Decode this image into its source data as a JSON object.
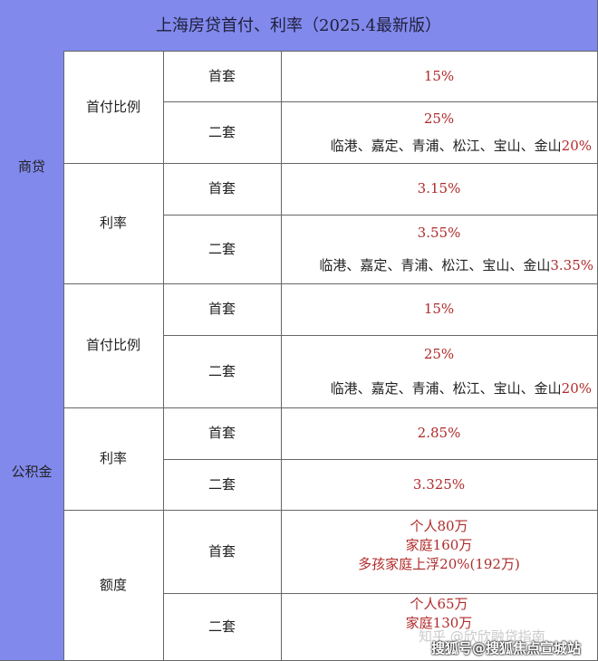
{
  "title": "上海房贷首付、利率（2025.4最新版）",
  "colors": {
    "header_bg": "#8189ec",
    "value_text": "#b02a2a"
  },
  "sections": [
    {
      "label": "商贷",
      "groups": [
        {
          "label": "首付比例",
          "rows": [
            {
              "label": "首套",
              "value": "15%"
            },
            {
              "label": "二套",
              "value": "25%",
              "note_prefix": "临港、嘉定、青浦、松江、宝山、金山",
              "note_value": "20%"
            }
          ]
        },
        {
          "label": "利率",
          "rows": [
            {
              "label": "首套",
              "value": "3.15%"
            },
            {
              "label": "二套",
              "value": "3.55%",
              "note_prefix": "临港、嘉定、青浦、松江、宝山、金山",
              "note_value": "3.35%"
            }
          ]
        }
      ]
    },
    {
      "label": "公积金",
      "groups": [
        {
          "label": "首付比例",
          "rows": [
            {
              "label": "首套",
              "value": "15%"
            },
            {
              "label": "二套",
              "value": "25%",
              "note_prefix": "临港、嘉定、青浦、松江、宝山、金山",
              "note_value": "20%"
            }
          ]
        },
        {
          "label": "利率",
          "rows": [
            {
              "label": "首套",
              "value": "2.85%"
            },
            {
              "label": "二套",
              "value": "3.325%"
            }
          ]
        },
        {
          "label": "额度",
          "rows": [
            {
              "label": "首套",
              "lines": [
                "个人80万",
                "家庭160万",
                "多孩家庭上浮20%(192万)"
              ]
            },
            {
              "label": "二套",
              "lines": [
                "个人65万",
                "家庭130万"
              ]
            }
          ]
        }
      ]
    }
  ],
  "watermarks": [
    "知乎 @欣欣融贷指南",
    "搜狐号@搜狐焦点宣城站"
  ]
}
